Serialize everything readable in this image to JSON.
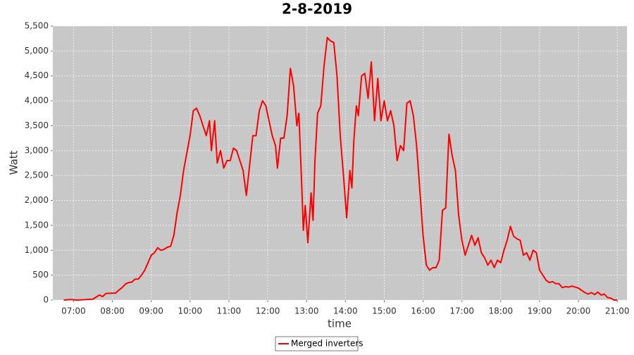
{
  "chart_data": {
    "type": "line",
    "title": "2-8-2019",
    "xlabel": "time",
    "ylabel": "Watt",
    "x": [
      "06:45",
      "06:55",
      "07:05",
      "07:20",
      "07:30",
      "07:40",
      "07:45",
      "07:50",
      "08:00",
      "08:05",
      "08:10",
      "08:15",
      "08:20",
      "08:25",
      "08:30",
      "08:35",
      "08:40",
      "08:45",
      "08:50",
      "08:55",
      "09:00",
      "09:05",
      "09:10",
      "09:15",
      "09:20",
      "09:25",
      "09:30",
      "09:35",
      "09:40",
      "09:45",
      "09:50",
      "09:55",
      "10:00",
      "10:05",
      "10:10",
      "10:15",
      "10:20",
      "10:25",
      "10:30",
      "10:33",
      "10:38",
      "10:42",
      "10:47",
      "10:52",
      "10:57",
      "11:02",
      "11:07",
      "11:12",
      "11:17",
      "11:22",
      "11:27",
      "11:32",
      "11:37",
      "11:42",
      "11:47",
      "11:52",
      "11:57",
      "12:02",
      "12:07",
      "12:12",
      "12:15",
      "12:20",
      "12:25",
      "12:30",
      "12:35",
      "12:40",
      "12:45",
      "12:48",
      "12:52",
      "12:55",
      "12:58",
      "13:02",
      "13:07",
      "13:10",
      "13:13",
      "13:17",
      "13:22",
      "13:27",
      "13:32",
      "13:37",
      "13:42",
      "13:47",
      "13:52",
      "13:57",
      "14:02",
      "14:07",
      "14:10",
      "14:13",
      "14:17",
      "14:20",
      "14:25",
      "14:30",
      "14:35",
      "14:40",
      "14:45",
      "14:50",
      "14:55",
      "15:00",
      "15:05",
      "15:10",
      "15:15",
      "15:20",
      "15:25",
      "15:30",
      "15:35",
      "15:40",
      "15:45",
      "15:50",
      "15:55",
      "16:00",
      "16:05",
      "16:10",
      "16:15",
      "16:20",
      "16:25",
      "16:30",
      "16:35",
      "16:40",
      "16:45",
      "16:50",
      "16:55",
      "17:00",
      "17:05",
      "17:10",
      "17:15",
      "17:20",
      "17:25",
      "17:30",
      "17:35",
      "17:40",
      "17:45",
      "17:50",
      "17:55",
      "18:00",
      "18:05",
      "18:10",
      "18:15",
      "18:20",
      "18:25",
      "18:30",
      "18:35",
      "18:40",
      "18:45",
      "18:50",
      "18:55",
      "19:00",
      "19:10",
      "19:15",
      "19:20",
      "19:25",
      "19:30",
      "19:35",
      "19:40",
      "19:45",
      "19:50",
      "19:55",
      "20:00",
      "20:10",
      "20:15",
      "20:20",
      "20:25",
      "20:30",
      "20:35",
      "20:40",
      "20:45",
      "20:50",
      "20:55",
      "21:00"
    ],
    "series": [
      {
        "name": "Merged inverters",
        "color": "#ff0000",
        "values": [
          0,
          10,
          0,
          10,
          20,
          100,
          70,
          130,
          140,
          140,
          200,
          250,
          320,
          350,
          360,
          420,
          420,
          500,
          600,
          750,
          900,
          950,
          1050,
          1000,
          1020,
          1060,
          1080,
          1300,
          1750,
          2100,
          2600,
          2950,
          3300,
          3800,
          3850,
          3700,
          3500,
          3300,
          3600,
          3000,
          3600,
          2750,
          3000,
          2650,
          2800,
          2800,
          3050,
          3000,
          2800,
          2600,
          2100,
          2700,
          3300,
          3300,
          3800,
          4000,
          3900,
          3600,
          3300,
          3100,
          2650,
          3250,
          3250,
          3700,
          4650,
          4300,
          3500,
          3750,
          2500,
          1400,
          1900,
          1150,
          2150,
          1600,
          2800,
          3750,
          3900,
          4700,
          5270,
          5200,
          5170,
          4500,
          3300,
          2500,
          1650,
          2600,
          2250,
          3200,
          3900,
          3700,
          4500,
          4550,
          4050,
          4780,
          3600,
          4450,
          3600,
          4000,
          3600,
          3800,
          3500,
          2800,
          3100,
          3000,
          3950,
          4000,
          3700,
          3100,
          2200,
          1300,
          700,
          600,
          650,
          650,
          800,
          1800,
          1850,
          3330,
          2900,
          2600,
          1700,
          1200,
          900,
          1100,
          1300,
          1100,
          1250,
          950,
          850,
          700,
          800,
          650,
          800,
          750,
          1000,
          1200,
          1480,
          1280,
          1230,
          1200,
          900,
          950,
          800,
          1000,
          950,
          600,
          400,
          350,
          370,
          330,
          330,
          250,
          270,
          260,
          280,
          260,
          240,
          150,
          120,
          150,
          110,
          160,
          100,
          120,
          50,
          40,
          0,
          0
        ]
      }
    ],
    "xlim": [
      "06:28",
      "21:15"
    ],
    "xticks": [
      "07:00",
      "08:00",
      "09:00",
      "10:00",
      "11:00",
      "12:00",
      "13:00",
      "14:00",
      "15:00",
      "16:00",
      "17:00",
      "18:00",
      "19:00",
      "20:00",
      "21:00"
    ],
    "ylim": [
      0,
      5500
    ],
    "yticks": [
      0,
      500,
      {
        "value": 1000,
        "label": "1,000"
      },
      {
        "value": 1500,
        "label": "1,500"
      },
      {
        "value": 2000,
        "label": "2,000"
      },
      {
        "value": 2500,
        "label": "2,500"
      },
      {
        "value": 3000,
        "label": "3,000"
      },
      {
        "value": 3500,
        "label": "3,500"
      },
      {
        "value": 4000,
        "label": "4,000"
      },
      {
        "value": 4500,
        "label": "4,500"
      },
      {
        "value": 5000,
        "label": "5,000"
      },
      {
        "value": 5500,
        "label": "5,500"
      }
    ],
    "grid": true
  }
}
